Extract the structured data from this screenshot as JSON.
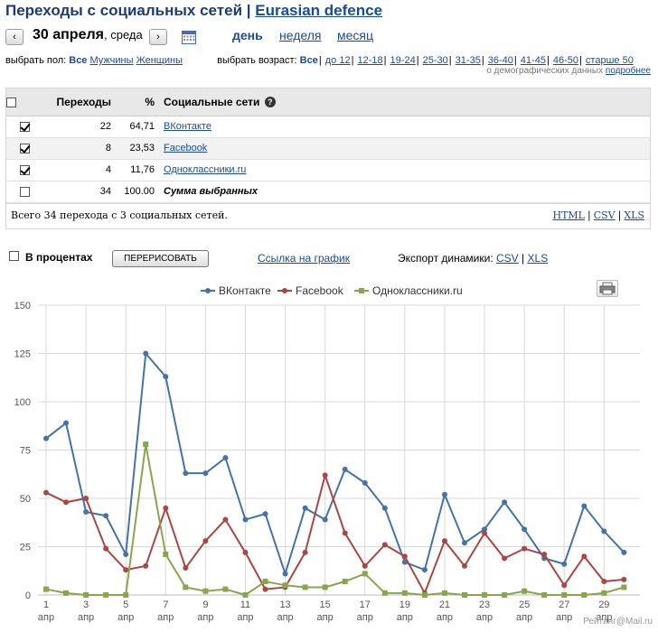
{
  "header": {
    "title": "Переходы с социальных сетей",
    "separator": "|",
    "site_name": "Eurasian defence"
  },
  "date_nav": {
    "prev_label": "‹",
    "next_label": "›",
    "date": "30 апреля",
    "weekday": ", среда",
    "periods": [
      "день",
      "неделя",
      "месяц"
    ],
    "active_period": "день"
  },
  "filters": {
    "gender_label": "выбрать пол:",
    "gender_options": [
      "Все",
      "Мужчины",
      "Женщины"
    ],
    "age_label": "выбрать возраст:",
    "age_options": [
      "Все",
      "до 12",
      "12-18",
      "19-24",
      "25-30",
      "31-35",
      "36-40",
      "41-45",
      "46-50",
      "старше 50"
    ],
    "demo_note": "о демографических данных",
    "demo_link": "подробнее"
  },
  "table": {
    "headers": {
      "transitions": "Переходы",
      "percent": "%",
      "networks": "Социальные сети"
    },
    "rows": [
      {
        "checked": true,
        "count": "22",
        "percent": "64,71",
        "name": "ВКонтакте"
      },
      {
        "checked": true,
        "count": "8",
        "percent": "23,53",
        "name": "Facebook"
      },
      {
        "checked": true,
        "count": "4",
        "percent": "11,76",
        "name": "Одноклассники.ru"
      }
    ],
    "summary": {
      "checked": false,
      "count": "34",
      "percent": "100.00",
      "name": "Сумма выбранных"
    },
    "footer_text": "Всего 34 перехода с 3 социальных сетей.",
    "exports": [
      "HTML",
      "CSV",
      "XLS"
    ]
  },
  "chart_controls": {
    "percent_label": "В процентах",
    "redraw_label": "ПЕРЕРИСОВАТЬ",
    "graph_link": "Ссылка на график",
    "export_label": "Экспорт динамики:",
    "export_csv": "CSV",
    "export_sep": "|",
    "export_xls": "XLS"
  },
  "chart_data": {
    "type": "line",
    "title": "",
    "xlabel": "",
    "ylabel": "",
    "ylim": [
      0,
      150
    ],
    "yticks": [
      0,
      25,
      50,
      75,
      100,
      125,
      150
    ],
    "grid": true,
    "legend_position": "top",
    "x": [
      1,
      2,
      3,
      4,
      5,
      6,
      7,
      8,
      9,
      10,
      11,
      12,
      13,
      14,
      15,
      16,
      17,
      18,
      19,
      20,
      21,
      22,
      23,
      24,
      25,
      26,
      27,
      28,
      29,
      30
    ],
    "x_tick_labels": [
      "1",
      "3",
      "5",
      "7",
      "9",
      "11",
      "13",
      "15",
      "17",
      "19",
      "21",
      "23",
      "25",
      "27",
      "29"
    ],
    "x_tick_sublabel": "апр",
    "series": [
      {
        "name": "ВКонтакте",
        "color": "#4572a7",
        "marker": "circle",
        "values": [
          81,
          89,
          43,
          41,
          21,
          125,
          113,
          63,
          63,
          71,
          39,
          42,
          11,
          45,
          39,
          65,
          58,
          45,
          17,
          13,
          52,
          27,
          34,
          48,
          34,
          19,
          16,
          46,
          33,
          22
        ]
      },
      {
        "name": "Facebook",
        "color": "#aa4643",
        "marker": "circle",
        "values": [
          53,
          48,
          50,
          24,
          13,
          15,
          45,
          14,
          28,
          39,
          22,
          3,
          4,
          22,
          62,
          32,
          15,
          26,
          20,
          1,
          28,
          15,
          32,
          19,
          24,
          21,
          5,
          20,
          7,
          8
        ]
      },
      {
        "name": "Одноклассники.ru",
        "color": "#89a54e",
        "marker": "square",
        "values": [
          3,
          1,
          0,
          0,
          0,
          78,
          21,
          4,
          2,
          3,
          0,
          7,
          5,
          4,
          4,
          7,
          11,
          1,
          1,
          0,
          1,
          0,
          0,
          0,
          2,
          0,
          0,
          0,
          1,
          4
        ]
      }
    ]
  },
  "footer": {
    "brand": "Рейтинг@Mail.ru"
  }
}
